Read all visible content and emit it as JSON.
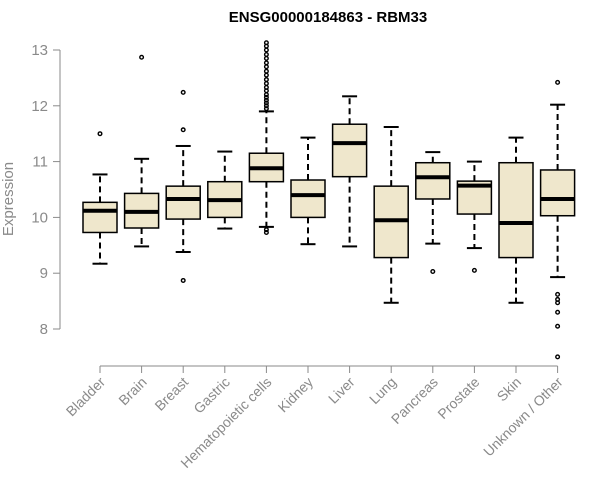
{
  "chart_data": {
    "type": "box",
    "title": "ENSG00000184863 - RBM33",
    "xlabel": "",
    "ylabel": "Expression",
    "ylim": [
      7.4,
      13.2
    ],
    "yticks": [
      8,
      9,
      10,
      11,
      12,
      13
    ],
    "categories": [
      "Bladder",
      "Brain",
      "Breast",
      "Gastric",
      "Hematopoietic cells",
      "Kidney",
      "Liver",
      "Lung",
      "Pancreas",
      "Prostate",
      "Skin",
      "Unknown / Other"
    ],
    "boxes": [
      {
        "name": "Bladder",
        "whisker_low": 9.17,
        "q1": 9.73,
        "median": 10.12,
        "q3": 10.27,
        "whisker_high": 10.77,
        "outliers": [
          11.5
        ]
      },
      {
        "name": "Brain",
        "whisker_low": 9.48,
        "q1": 9.81,
        "median": 10.1,
        "q3": 10.43,
        "whisker_high": 11.05,
        "outliers": [
          12.87
        ]
      },
      {
        "name": "Breast",
        "whisker_low": 9.38,
        "q1": 9.97,
        "median": 10.33,
        "q3": 10.56,
        "whisker_high": 11.28,
        "outliers": [
          8.87,
          11.57,
          12.24
        ]
      },
      {
        "name": "Gastric",
        "whisker_low": 9.8,
        "q1": 10.0,
        "median": 10.31,
        "q3": 10.64,
        "whisker_high": 11.18,
        "outliers": []
      },
      {
        "name": "Hematopoietic cells",
        "whisker_low": 9.83,
        "q1": 10.64,
        "median": 10.88,
        "q3": 11.15,
        "whisker_high": 11.9,
        "outliers": [
          9.73,
          9.78,
          11.95,
          12.0,
          12.05,
          12.1,
          12.15,
          12.2,
          12.27,
          12.33,
          12.4,
          12.47,
          12.55,
          12.62,
          12.7,
          12.77,
          12.85,
          12.92,
          13.0,
          13.07,
          13.13
        ]
      },
      {
        "name": "Kidney",
        "whisker_low": 9.52,
        "q1": 10.0,
        "median": 10.4,
        "q3": 10.67,
        "whisker_high": 11.43,
        "outliers": []
      },
      {
        "name": "Liver",
        "whisker_low": 9.48,
        "q1": 10.73,
        "median": 11.33,
        "q3": 11.67,
        "whisker_high": 12.17,
        "outliers": []
      },
      {
        "name": "Lung",
        "whisker_low": 8.47,
        "q1": 9.28,
        "median": 9.95,
        "q3": 10.56,
        "whisker_high": 11.62,
        "outliers": []
      },
      {
        "name": "Pancreas",
        "whisker_low": 9.53,
        "q1": 10.33,
        "median": 10.72,
        "q3": 10.98,
        "whisker_high": 11.17,
        "outliers": [
          9.03
        ]
      },
      {
        "name": "Prostate",
        "whisker_low": 9.45,
        "q1": 10.06,
        "median": 10.57,
        "q3": 10.65,
        "whisker_high": 11.0,
        "outliers": [
          9.05
        ]
      },
      {
        "name": "Skin",
        "whisker_low": 8.47,
        "q1": 9.28,
        "median": 9.9,
        "q3": 10.98,
        "whisker_high": 11.43,
        "outliers": []
      },
      {
        "name": "Unknown / Other",
        "whisker_low": 8.93,
        "q1": 10.03,
        "median": 10.33,
        "q3": 10.85,
        "whisker_high": 12.02,
        "outliers": [
          7.5,
          8.05,
          8.3,
          8.47,
          8.53,
          8.62,
          12.42
        ]
      }
    ],
    "colors": {
      "box_fill": "#efe7cc",
      "box_stroke": "#000000",
      "axis": "#8a8a8a",
      "tick_text": "#8a8a8a",
      "title": "#000000"
    }
  }
}
